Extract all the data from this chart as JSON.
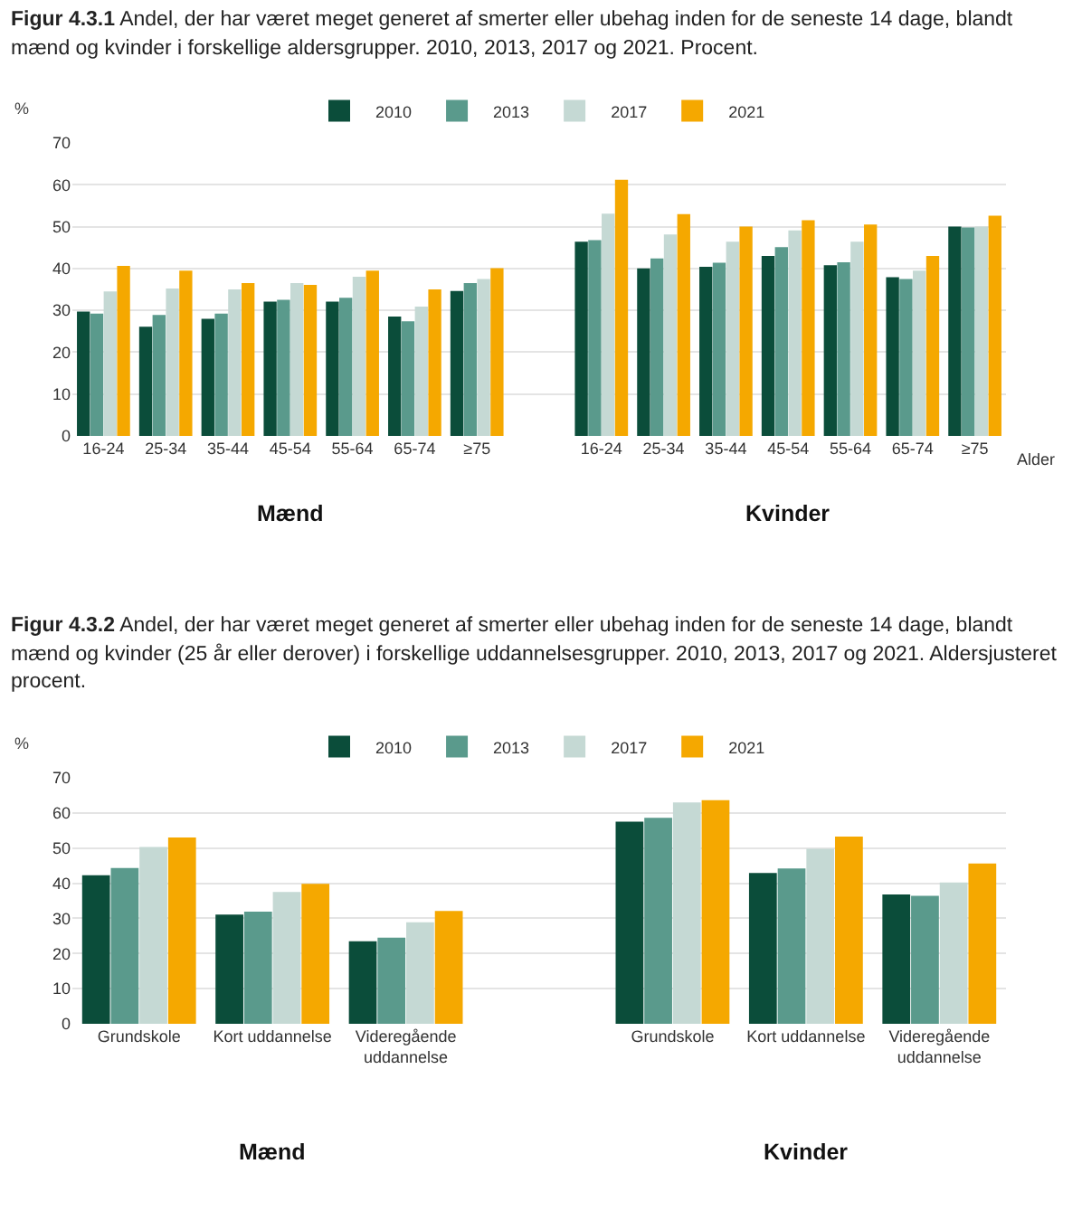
{
  "chart_data": [
    {
      "type": "bar",
      "title": "Figur 4.3.1 Andel, der har været meget generet af smerter eller ubehag inden for de seneste 14 dage, blandt mænd og kvinder i forskellige aldersgrupper. 2010, 2013, 2017 og 2021. Procent.",
      "xlabel": "Alder",
      "ylabel": "%",
      "categories": [
        "16-24",
        "25-34",
        "35-44",
        "45-54",
        "55-64",
        "65-74",
        "≥75",
        null,
        "16-24",
        "25-34",
        "35-44",
        "45-54",
        "55-64",
        "65-74",
        "≥75"
      ],
      "series": [
        {
          "name": "2010",
          "color": "#0b4d3a",
          "values": [
            29.7,
            26.1,
            28,
            32.1,
            32.1,
            28.5,
            34.6,
            null,
            46.4,
            40,
            40.4,
            43,
            40.8,
            37.9,
            50
          ]
        },
        {
          "name": "2013",
          "color": "#5a9a8c",
          "values": [
            29.2,
            28.9,
            29.2,
            32.5,
            33,
            27.4,
            36.5,
            null,
            46.8,
            42.4,
            41.4,
            45.1,
            41.5,
            37.5,
            49.8
          ]
        },
        {
          "name": "2017",
          "color": "#c5d9d4",
          "values": [
            34.5,
            35.2,
            35,
            36.5,
            38,
            30.9,
            37.5,
            null,
            53.1,
            48.1,
            46.4,
            49.1,
            46.4,
            39.5,
            50
          ]
        },
        {
          "name": "2021",
          "color": "#f5a800",
          "values": [
            40.6,
            39.5,
            36.5,
            36.1,
            39.5,
            35,
            40.1,
            null,
            61.2,
            53,
            50,
            51.5,
            50.5,
            43,
            52.6
          ]
        }
      ],
      "ylim": [
        0,
        70
      ],
      "yticks": [
        0,
        10,
        20,
        30,
        40,
        50,
        60,
        70
      ],
      "grid": "y",
      "legend": "top",
      "annotations": [
        "Mænd",
        "Kvinder"
      ]
    },
    {
      "type": "bar",
      "title": "Figur 4.3.2 Andel, der har været meget generet af smerter eller ubehag inden for de seneste 14 dage, blandt mænd og kvinder (25 år eller derover) i forskellige uddannelsesgrupper. 2010, 2013, 2017 og 2021. Aldersjusteret procent.",
      "ylabel": "%",
      "categories": [
        "Grundskole",
        "Kort uddannelse",
        "Videregående uddannelse",
        null,
        "Grundskole",
        "Kort uddannelse",
        "Videregående uddannelse"
      ],
      "series": [
        {
          "name": "2010",
          "color": "#0b4d3a",
          "values": [
            42.3,
            31.1,
            23.5,
            null,
            57.5,
            42.9,
            36.8
          ]
        },
        {
          "name": "2013",
          "color": "#5a9a8c",
          "values": [
            44.3,
            31.9,
            24.5,
            null,
            58.6,
            44.2,
            36.4
          ]
        },
        {
          "name": "2017",
          "color": "#c5d9d4",
          "values": [
            50.3,
            37.5,
            28.9,
            null,
            63,
            49.8,
            40.2
          ]
        },
        {
          "name": "2021",
          "color": "#f5a800",
          "values": [
            53,
            39.8,
            32.1,
            null,
            63.6,
            53.3,
            45.6
          ]
        }
      ],
      "ylim": [
        0,
        70
      ],
      "yticks": [
        0,
        10,
        20,
        30,
        40,
        50,
        60,
        70
      ],
      "grid": "y",
      "legend": "top",
      "annotations": [
        "Mænd",
        "Kvinder"
      ]
    }
  ]
}
